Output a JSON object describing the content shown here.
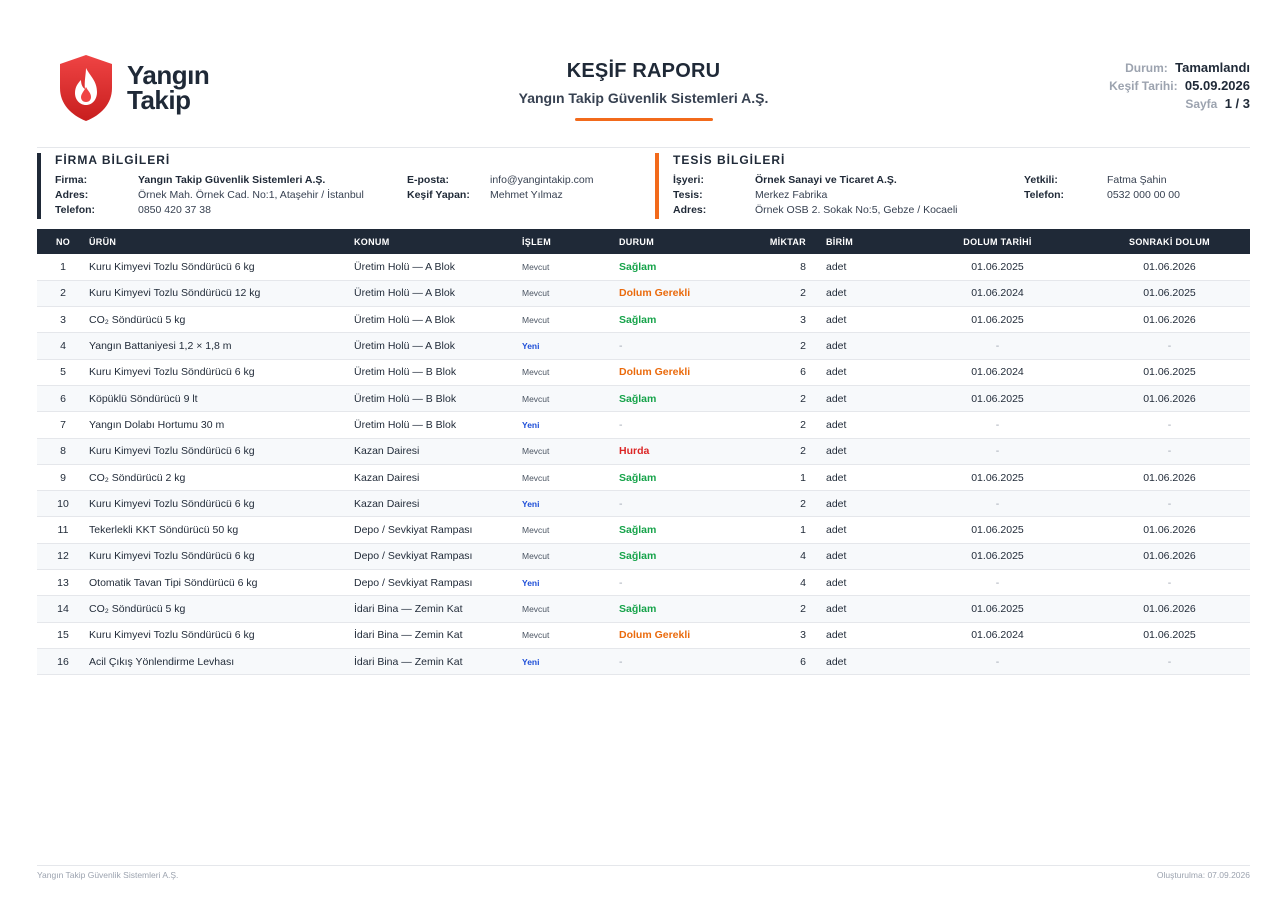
{
  "header": {
    "logo_line1": "Yangın",
    "logo_line2": "Takip",
    "title": "KEŞİF RAPORU",
    "subtitle": "Yangın Takip Güvenlik Sistemleri A.Ş.",
    "status_label": "Durum:",
    "status_value": "Tamamlandı",
    "date_label": "Keşif Tarihi:",
    "date_value": "05.09.2026",
    "page_label": "Sayfa",
    "page_value": "1 / 3"
  },
  "firm": {
    "title": "FİRMA BİLGİLERİ",
    "name_label": "Firma:",
    "name_value": "Yangın Takip Güvenlik Sistemleri A.Ş.",
    "address_label": "Adres:",
    "address_value": "Örnek Mah. Örnek Cad. No:1, Ataşehir / İstanbul",
    "phone_label": "Telefon:",
    "phone_value": "0850 420 37 38",
    "email_label": "E-posta:",
    "email_value": "info@yangintakip.com",
    "surveyor_label": "Keşif Yapan:",
    "surveyor_value": "Mehmet Yılmaz"
  },
  "facility": {
    "title": "TESİS BİLGİLERİ",
    "workplace_label": "İşyeri:",
    "workplace_value": "Örnek Sanayi ve Ticaret A.Ş.",
    "site_label": "Tesis:",
    "site_value": "Merkez Fabrika",
    "address_label": "Adres:",
    "address_value": "Örnek OSB 2. Sokak No:5, Gebze / Kocaeli",
    "contact_label": "Yetkili:",
    "contact_value": "Fatma Şahin",
    "phone_label": "Telefon:",
    "phone_value": "0532 000 00 00"
  },
  "table": {
    "headers": [
      "NO",
      "ÜRÜN",
      "KONUM",
      "İŞLEM",
      "DURUM",
      "MİKTAR",
      "BİRİM",
      "DOLUM TARİHİ",
      "SONRAKİ DOLUM"
    ],
    "rows": [
      [
        "1",
        "Kuru Kimyevi Tozlu Söndürücü 6 kg",
        "Üretim Holü — A Blok",
        "Mevcut",
        "Sağlam",
        "8",
        "adet",
        "01.06.2025",
        "01.06.2026"
      ],
      [
        "2",
        "Kuru Kimyevi Tozlu Söndürücü 12 kg",
        "Üretim Holü — A Blok",
        "Mevcut",
        "Dolum Gerekli",
        "2",
        "adet",
        "01.06.2024",
        "01.06.2025"
      ],
      [
        "3",
        "CO₂ Söndürücü 5 kg",
        "Üretim Holü — A Blok",
        "Mevcut",
        "Sağlam",
        "3",
        "adet",
        "01.06.2025",
        "01.06.2026"
      ],
      [
        "4",
        "Yangın Battaniyesi 1,2 × 1,8 m",
        "Üretim Holü — A Blok",
        "Yeni",
        "-",
        "2",
        "adet",
        "-",
        "-"
      ],
      [
        "5",
        "Kuru Kimyevi Tozlu Söndürücü 6 kg",
        "Üretim Holü — B Blok",
        "Mevcut",
        "Dolum Gerekli",
        "6",
        "adet",
        "01.06.2024",
        "01.06.2025"
      ],
      [
        "6",
        "Köpüklü Söndürücü 9 lt",
        "Üretim Holü — B Blok",
        "Mevcut",
        "Sağlam",
        "2",
        "adet",
        "01.06.2025",
        "01.06.2026"
      ],
      [
        "7",
        "Yangın Dolabı Hortumu 30 m",
        "Üretim Holü — B Blok",
        "Yeni",
        "-",
        "2",
        "adet",
        "-",
        "-"
      ],
      [
        "8",
        "Kuru Kimyevi Tozlu Söndürücü 6 kg",
        "Kazan Dairesi",
        "Mevcut",
        "Hurda",
        "2",
        "adet",
        "-",
        "-"
      ],
      [
        "9",
        "CO₂ Söndürücü 2 kg",
        "Kazan Dairesi",
        "Mevcut",
        "Sağlam",
        "1",
        "adet",
        "01.06.2025",
        "01.06.2026"
      ],
      [
        "10",
        "Kuru Kimyevi Tozlu Söndürücü 6 kg",
        "Kazan Dairesi",
        "Yeni",
        "-",
        "2",
        "adet",
        "-",
        "-"
      ],
      [
        "11",
        "Tekerlekli KKT Söndürücü 50 kg",
        "Depo / Sevkiyat Rampası",
        "Mevcut",
        "Sağlam",
        "1",
        "adet",
        "01.06.2025",
        "01.06.2026"
      ],
      [
        "12",
        "Kuru Kimyevi Tozlu Söndürücü 6 kg",
        "Depo / Sevkiyat Rampası",
        "Mevcut",
        "Sağlam",
        "4",
        "adet",
        "01.06.2025",
        "01.06.2026"
      ],
      [
        "13",
        "Otomatik Tavan Tipi Söndürücü 6 kg",
        "Depo / Sevkiyat Rampası",
        "Yeni",
        "-",
        "4",
        "adet",
        "-",
        "-"
      ],
      [
        "14",
        "CO₂ Söndürücü 5 kg",
        "İdari Bina — Zemin Kat",
        "Mevcut",
        "Sağlam",
        "2",
        "adet",
        "01.06.2025",
        "01.06.2026"
      ],
      [
        "15",
        "Kuru Kimyevi Tozlu Söndürücü 6 kg",
        "İdari Bina — Zemin Kat",
        "Mevcut",
        "Dolum Gerekli",
        "3",
        "adet",
        "01.06.2024",
        "01.06.2025"
      ],
      [
        "16",
        "Acil Çıkış Yönlendirme Levhası",
        "İdari Bina — Zemin Kat",
        "Yeni",
        "-",
        "6",
        "adet",
        "-",
        "-"
      ]
    ]
  },
  "footer": {
    "left": "Yangın Takip Güvenlik Sistemleri A.Ş.",
    "right": "Oluşturulma: 07.09.2026"
  },
  "colors": {
    "dark": "#1f2937",
    "accent": "#f26a1b",
    "good": "#16a34a",
    "refill": "#ea6a0c",
    "scrap": "#dc2626",
    "new": "#1d4ed8"
  },
  "icons": {
    "logo": "flame-shield-icon"
  }
}
